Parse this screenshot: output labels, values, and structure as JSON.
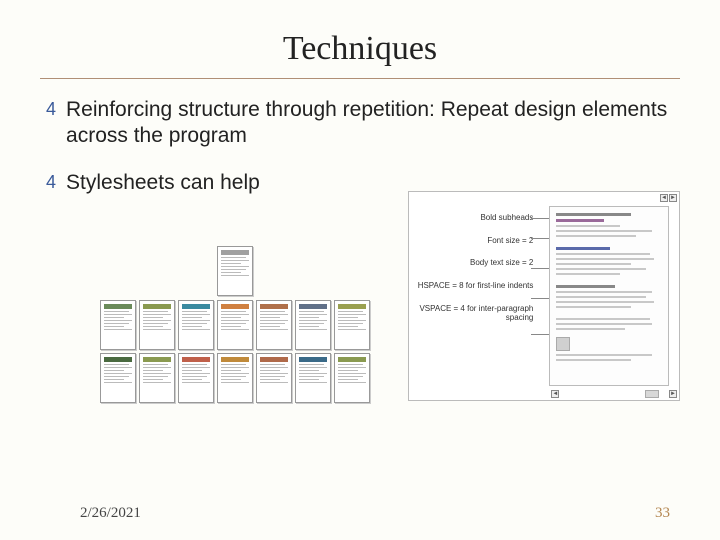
{
  "title": "Techniques",
  "bullets": [
    "Reinforcing structure through repetition: Repeat design elements across the program",
    "Stylesheets can help"
  ],
  "footer": {
    "date": "2/26/2021",
    "page_number": "33"
  },
  "left_graphic": {
    "top_accent": "#a0a0a0",
    "rows": [
      [
        "#6a8a5a",
        "#8a9a50",
        "#3a8aa0",
        "#d08040",
        "#b0704a",
        "#607088",
        "#9aa050"
      ],
      [
        "#4a6a40",
        "#8a9a50",
        "#c0604a",
        "#c08a3a",
        "#b06a4a",
        "#3a6a88",
        "#8a9a50"
      ]
    ],
    "page_border": "#999999",
    "page_bg": "#ffffff",
    "line_color": "#bbbbbb"
  },
  "right_graphic": {
    "labels": [
      "Bold subheads",
      "Font size = 2",
      "Body text size = 2",
      "HSPACE = 8 for first-line indents",
      "VSPACE = 4 for inter-paragraph spacing"
    ],
    "border": "#bbbbbb",
    "bg": "#ffffff",
    "heavy_line": "#888888",
    "light_line": "#c8c8c8",
    "sub_color": "#9a6a9a",
    "blue_color": "#5a6aaa"
  },
  "colors": {
    "background": "#fdfdf9",
    "title_text": "#222222",
    "body_text": "#222222",
    "hr": "#b08f76",
    "bullet_marker": "#3a5a9a",
    "footer_date": "#444444",
    "footer_num": "#b38650"
  },
  "fonts": {
    "title": {
      "family": "Times New Roman",
      "size_pt": 26,
      "weight": "normal"
    },
    "body": {
      "family": "Comic Sans MS",
      "size_pt": 16,
      "weight": "normal"
    },
    "annotation": {
      "family": "Arial",
      "size_pt": 6
    }
  }
}
